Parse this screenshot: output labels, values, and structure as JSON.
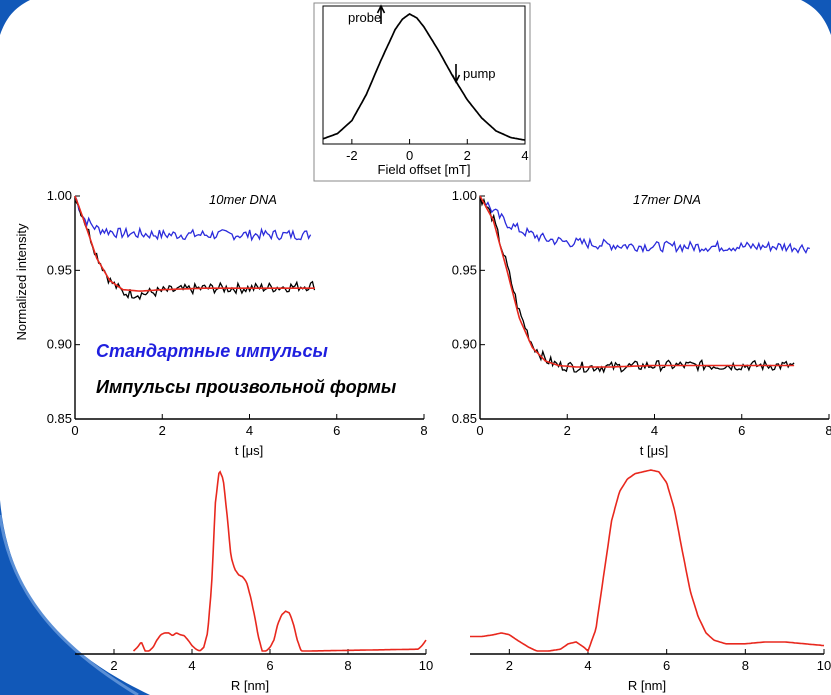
{
  "annotations": {
    "standard": "Стандартные импульсы",
    "shaped": "Импульсы произвольной формы",
    "standard_color": "#1f1fdf",
    "shaped_color": "#000000"
  },
  "colors": {
    "blue": "#2b2bdb",
    "black": "#000000",
    "red": "#e8281e",
    "frame": "#1158b8"
  },
  "chart_data": [
    {
      "id": "inset",
      "type": "line",
      "xlabel": "Field offset [mT]",
      "xlim": [
        -3,
        4
      ],
      "ylim": [
        0,
        1
      ],
      "xticks": [
        -2,
        0,
        2,
        4
      ],
      "labels": {
        "probe": "probe",
        "pump": "pump"
      },
      "series": [
        {
          "key": "epr",
          "color": "#000000",
          "x": [
            -3,
            -2.5,
            -2,
            -1.5,
            -1,
            -0.5,
            -0.25,
            0,
            0.25,
            0.5,
            1,
            1.5,
            2,
            2.5,
            3,
            3.5,
            4
          ],
          "y": [
            0.04,
            0.08,
            0.18,
            0.38,
            0.64,
            0.88,
            0.96,
            1.0,
            0.97,
            0.9,
            0.72,
            0.52,
            0.34,
            0.2,
            0.1,
            0.05,
            0.03
          ]
        }
      ]
    },
    {
      "id": "t1",
      "type": "line",
      "title": "10mer DNA",
      "ylabel": "Normalized intensity",
      "xlabel": "t [μs]",
      "xlim": [
        0,
        8
      ],
      "ylim": [
        0.85,
        1.0
      ],
      "xticks": [
        0,
        2,
        4,
        6,
        8
      ],
      "yticks": [
        "0.85",
        "0.90",
        "0.95",
        "1.00"
      ],
      "series": [
        {
          "key": "standard",
          "color": "#2b2bdb",
          "noisy": true,
          "x": [
            0,
            0.2,
            0.5,
            1.0,
            2.0,
            3.0,
            4.0,
            5.0,
            5.4
          ],
          "y": [
            1.0,
            0.985,
            0.978,
            0.975,
            0.974,
            0.974,
            0.974,
            0.974,
            0.974
          ]
        },
        {
          "key": "shaped",
          "color": "#000000",
          "noisy": true,
          "x": [
            0,
            0.2,
            0.5,
            0.8,
            1.1,
            1.5,
            2.0,
            3.0,
            4.0,
            5.0,
            5.5
          ],
          "y": [
            1.0,
            0.985,
            0.96,
            0.943,
            0.935,
            0.934,
            0.936,
            0.938,
            0.938,
            0.939,
            0.94
          ]
        },
        {
          "key": "fit",
          "color": "#e8281e",
          "x": [
            0,
            0.2,
            0.5,
            0.8,
            1.1,
            1.5,
            2.0,
            3.0,
            4.0,
            5.0,
            5.5
          ],
          "y": [
            1.0,
            0.984,
            0.958,
            0.943,
            0.937,
            0.936,
            0.937,
            0.938,
            0.938,
            0.938,
            0.938
          ]
        }
      ]
    },
    {
      "id": "t2",
      "type": "line",
      "title": "17mer DNA",
      "xlabel": "t [μs]",
      "xlim": [
        0,
        8
      ],
      "ylim": [
        0.85,
        1.0
      ],
      "xticks": [
        0,
        2,
        4,
        6,
        8
      ],
      "yticks": [
        "0.85",
        "0.90",
        "0.95",
        "1.00"
      ],
      "series": [
        {
          "key": "standard",
          "color": "#2b2bdb",
          "noisy": true,
          "x": [
            0,
            0.3,
            0.6,
            1.0,
            1.5,
            2.0,
            3.0,
            4.0,
            5.0,
            6.0,
            7.0,
            7.6
          ],
          "y": [
            1.0,
            0.99,
            0.982,
            0.976,
            0.971,
            0.969,
            0.967,
            0.966,
            0.966,
            0.966,
            0.966,
            0.965
          ]
        },
        {
          "key": "shaped",
          "color": "#000000",
          "noisy": true,
          "x": [
            0,
            0.3,
            0.6,
            0.9,
            1.2,
            1.5,
            1.8,
            2.2,
            3.0,
            4.0,
            5.0,
            6.0,
            7.2
          ],
          "y": [
            1.0,
            0.985,
            0.955,
            0.922,
            0.9,
            0.89,
            0.886,
            0.885,
            0.885,
            0.886,
            0.886,
            0.886,
            0.886
          ]
        },
        {
          "key": "fit",
          "color": "#e8281e",
          "x": [
            0,
            0.3,
            0.6,
            0.9,
            1.2,
            1.5,
            1.8,
            2.2,
            3.0,
            4.0,
            5.0,
            6.0,
            7.2
          ],
          "y": [
            1.0,
            0.984,
            0.952,
            0.918,
            0.898,
            0.889,
            0.886,
            0.885,
            0.885,
            0.886,
            0.886,
            0.886,
            0.886
          ]
        }
      ]
    },
    {
      "id": "r1",
      "type": "line",
      "xlabel": "R [nm]",
      "xlim": [
        1,
        10
      ],
      "ylim": [
        0,
        1
      ],
      "xticks": [
        2,
        4,
        6,
        8,
        10
      ],
      "series": [
        {
          "key": "distance",
          "color": "#e8281e",
          "x": [
            2.5,
            2.6,
            2.7,
            2.8,
            2.9,
            3.0,
            3.1,
            3.2,
            3.3,
            3.4,
            3.5,
            3.6,
            3.7,
            3.8,
            3.9,
            4.0,
            4.1,
            4.2,
            4.3,
            4.4,
            4.5,
            4.6,
            4.7,
            4.8,
            4.9,
            5.0,
            5.1,
            5.2,
            5.3,
            5.4,
            5.5,
            5.6,
            5.7,
            5.8,
            5.9,
            6.0,
            6.1,
            6.2,
            6.3,
            6.4,
            6.5,
            6.6,
            6.7,
            6.8,
            6.9,
            7.0,
            9.8,
            9.9,
            10.0
          ],
          "y": [
            0,
            0.02,
            0.05,
            0,
            0,
            0.02,
            0.06,
            0.09,
            0.1,
            0.1,
            0.085,
            0.1,
            0.09,
            0.085,
            0.06,
            0.03,
            0.01,
            0,
            0.02,
            0.1,
            0.35,
            0.82,
            1.0,
            0.95,
            0.75,
            0.52,
            0.45,
            0.42,
            0.41,
            0.38,
            0.3,
            0.2,
            0.08,
            0,
            0,
            0.02,
            0.06,
            0.15,
            0.2,
            0.22,
            0.21,
            0.15,
            0.06,
            0,
            0,
            0,
            0.01,
            0.03,
            0.06
          ]
        }
      ]
    },
    {
      "id": "r2",
      "type": "line",
      "xlabel": "R [nm]",
      "xlim": [
        1,
        10
      ],
      "ylim": [
        0,
        1
      ],
      "xticks": [
        2,
        4,
        6,
        8,
        10
      ],
      "series": [
        {
          "key": "distance",
          "color": "#e8281e",
          "x": [
            1.0,
            1.3,
            1.6,
            1.8,
            2.0,
            2.2,
            2.5,
            2.7,
            3.0,
            3.3,
            3.5,
            3.7,
            3.9,
            4.0,
            4.2,
            4.4,
            4.6,
            4.8,
            5.0,
            5.2,
            5.4,
            5.6,
            5.8,
            6.0,
            6.2,
            6.4,
            6.6,
            6.8,
            7.0,
            7.2,
            7.5,
            8.0,
            8.5,
            9.0,
            9.5,
            10.0
          ],
          "y": [
            0.08,
            0.08,
            0.09,
            0.1,
            0.09,
            0.06,
            0.02,
            0,
            0,
            0.01,
            0.04,
            0.05,
            0.02,
            0,
            0.12,
            0.42,
            0.72,
            0.88,
            0.95,
            0.98,
            0.99,
            1.0,
            0.99,
            0.93,
            0.78,
            0.55,
            0.33,
            0.19,
            0.1,
            0.06,
            0.04,
            0.04,
            0.05,
            0.05,
            0.04,
            0.03
          ]
        }
      ]
    }
  ]
}
